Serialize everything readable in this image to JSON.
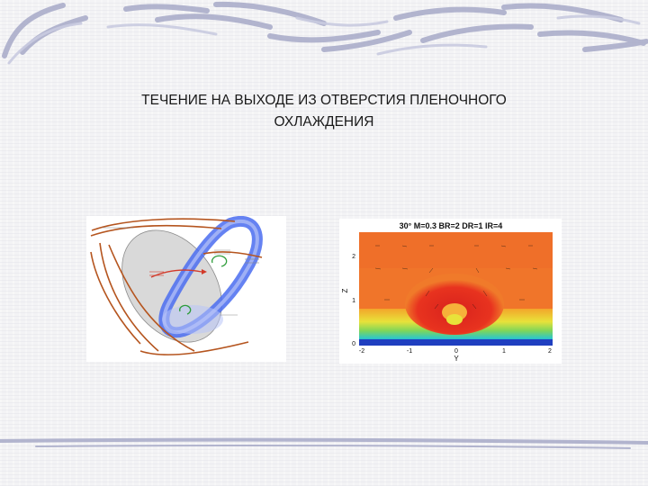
{
  "slide": {
    "title_line1": "ТЕЧЕНИЕ НА ВЫХОДЕ ИЗ ОТВЕРСТИЯ ПЛЕНОЧНОГО",
    "title_line2": "ОХЛАЖДЕНИЯ"
  },
  "figure_right": {
    "header": "30° M=0.3 BR=2 DR=1 IR=4",
    "xlabel": "Y",
    "ylabel": "Z",
    "x_ticks": [
      "-2",
      "-1",
      "0",
      "1",
      "2"
    ],
    "y_ticks": [
      "0",
      "1",
      "2"
    ]
  },
  "colors": {
    "background": "#f3f3f5",
    "deco_stroke": "#9fa3c4",
    "jet_blue": "#4a6cf0",
    "flow_orange": "#b5551f"
  }
}
